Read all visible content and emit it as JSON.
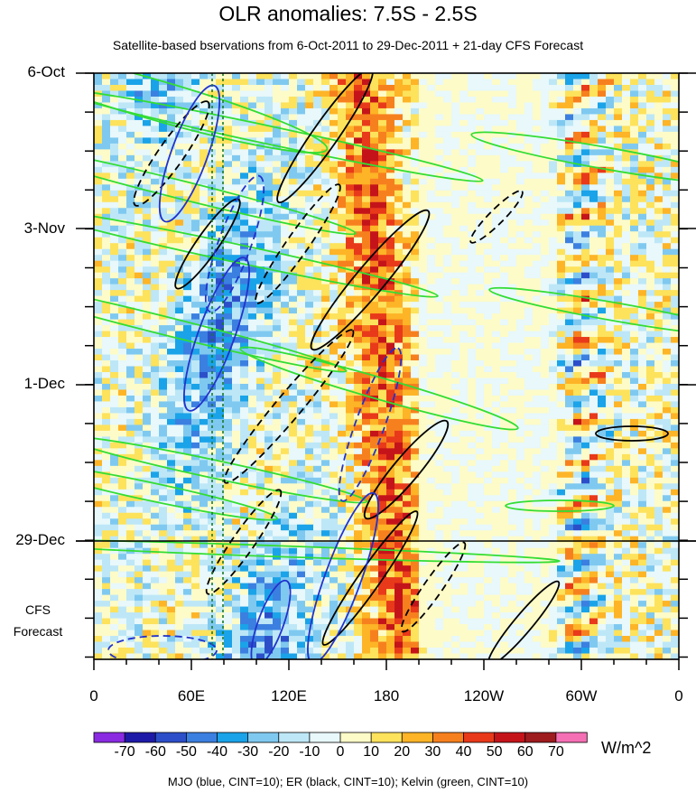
{
  "title": "OLR anomalies: 7.5S - 2.5S",
  "subtitle": "Satellite-based bservations from 6-Oct-2011 to 29-Dec-2011 + 21-day CFS Forecast",
  "footer": "MJO (blue, CINT=10); ER (black, CINT=10); Kelvin (green, CINT=10)",
  "cfs_label_line1": "CFS",
  "cfs_label_line2": "Forecast",
  "chart_data": {
    "type": "heatmap",
    "title": "OLR anomalies: 7.5S - 2.5S",
    "subtitle": "Satellite-based bservations from 6-Oct-2011 to 29-Dec-2011 + 21-day CFS Forecast",
    "x_tick_labels": [
      "0",
      "60E",
      "120E",
      "180",
      "120W",
      "60W",
      "0"
    ],
    "x_range_deg_east": [
      0,
      360
    ],
    "y_tick_labels": [
      "6-Oct",
      "3-Nov",
      "1-Dec",
      "29-Dec"
    ],
    "y_range": [
      "6-Oct-2011",
      "19-Jan-2012"
    ],
    "observation_end": "29-Dec-2011",
    "forecast_days": 21,
    "colorbar": {
      "units": "W/m^2",
      "labels": [
        "-70",
        "-60",
        "-50",
        "-40",
        "-30",
        "-20",
        "-10",
        "0",
        "10",
        "20",
        "30",
        "40",
        "50",
        "60",
        "70"
      ],
      "colors": [
        "#8a2be2",
        "#1e1aa8",
        "#2c4fc9",
        "#3b7fe0",
        "#1aa3e8",
        "#7fc9f0",
        "#bde7f7",
        "#e8f8fb",
        "#fdfbc8",
        "#fde25c",
        "#fdb426",
        "#f7801e",
        "#e8391a",
        "#c4141a",
        "#9e1b1e",
        "#f56fb5"
      ]
    },
    "overlays": [
      {
        "name": "MJO",
        "color": "blue",
        "cint": 10
      },
      {
        "name": "ER",
        "color": "black",
        "cint": 10
      },
      {
        "name": "Kelvin",
        "color": "green",
        "cint": 10
      }
    ]
  }
}
